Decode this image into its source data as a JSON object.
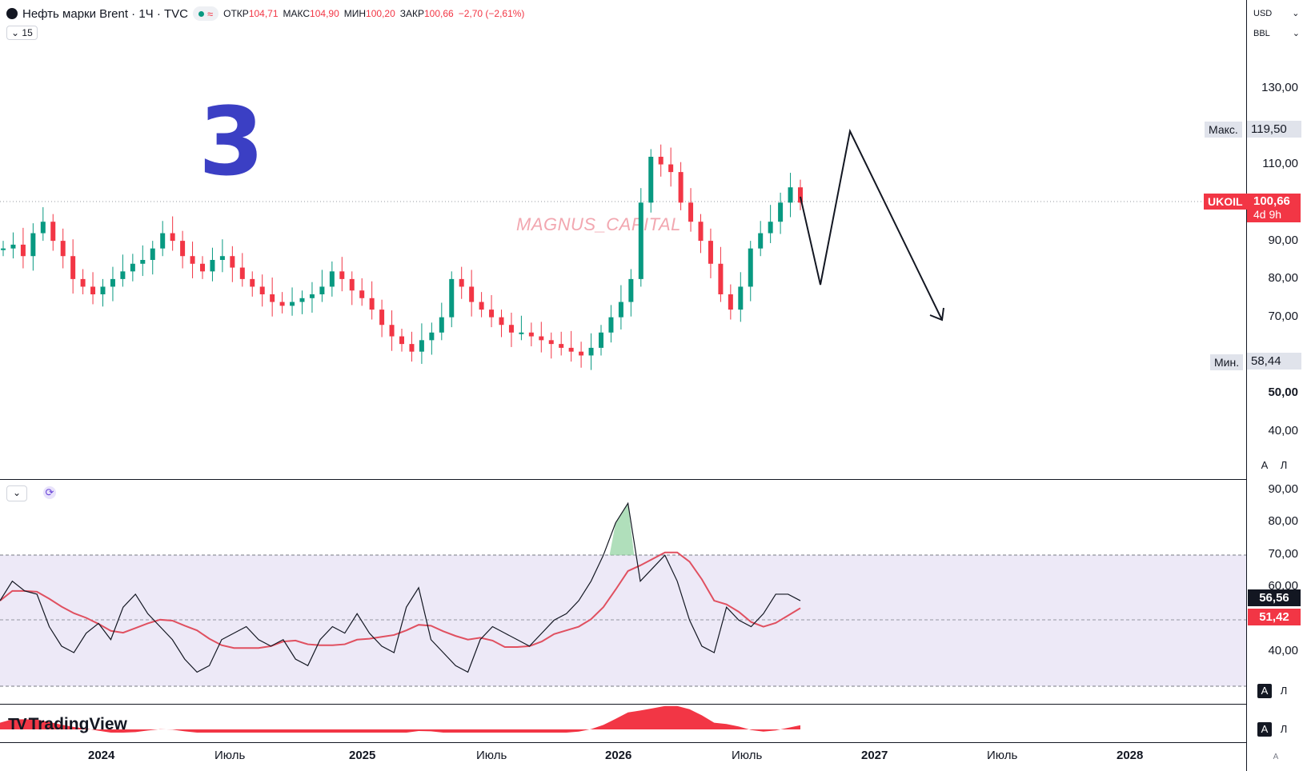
{
  "header": {
    "title": "Нефть марки Brent · 1Ч · TVC",
    "interval_chip": "15",
    "ohlc": [
      {
        "k": "ОТКР",
        "v": "104,71"
      },
      {
        "k": "МАКС",
        "v": "104,90"
      },
      {
        "k": "МИН",
        "v": "100,20"
      },
      {
        "k": "ЗАКР",
        "v": "100,66"
      }
    ],
    "change": "−2,70 (−2,61%)"
  },
  "axis": {
    "currency": "USD",
    "unit": "BBL",
    "price_ticks": [
      "130,00",
      "110,00",
      "90,00",
      "80,00",
      "70,00",
      "50,00",
      "40,00"
    ],
    "max_label": "Макс.",
    "max_value": "119,50",
    "min_label": "Мин.",
    "min_value": "58,44",
    "symbol": "UKOIL",
    "last_price": "100,66",
    "countdown": "4d 9h",
    "rsi_ticks": [
      "90,00",
      "80,00",
      "70,00",
      "60,00",
      "40,00"
    ],
    "rsi_value": "56,56",
    "rsi_ma_value": "51,42",
    "auto_label": "A",
    "log_label": "Л"
  },
  "time_axis": [
    "2024",
    "Июль",
    "2025",
    "Июль",
    "2026",
    "Июль",
    "2027",
    "Июль",
    "2028"
  ],
  "annotations": {
    "big_number": "3",
    "watermark": "MAGNUS_CAPITAL",
    "brand": "TradingView"
  },
  "colors": {
    "up": "#089981",
    "down": "#f23645",
    "number": "#3b3fc4",
    "rsi_band": "#ede9f7",
    "rsi_ma": "#e05060"
  },
  "chart_data": [
    {
      "type": "candlestick",
      "ylim": [
        30,
        140
      ],
      "series": [
        {
          "name": "UKOIL",
          "values": [
            88,
            89,
            86,
            92,
            95,
            90,
            86,
            80,
            78,
            76,
            78,
            80,
            82,
            84,
            85,
            88,
            92,
            90,
            86,
            84,
            82,
            85,
            86,
            83,
            80,
            78,
            76,
            74,
            73,
            74,
            75,
            76,
            78,
            82,
            80,
            77,
            75,
            72,
            68,
            65,
            63,
            61,
            64,
            66,
            70,
            80,
            78,
            74,
            72,
            70,
            68,
            66,
            66,
            65,
            64,
            63,
            62,
            61,
            60,
            62,
            66,
            70,
            74,
            80,
            100,
            112,
            110,
            108,
            100,
            95,
            90,
            84,
            76,
            72,
            78,
            88,
            92,
            95,
            100,
            104,
            100
          ]
        }
      ]
    },
    {
      "type": "line",
      "ylim": [
        30,
        90
      ],
      "series": [
        {
          "name": "RSI",
          "values": [
            56,
            62,
            59,
            58,
            48,
            42,
            40,
            46,
            49,
            44,
            54,
            58,
            52,
            48,
            44,
            38,
            34,
            36,
            44,
            46,
            48,
            44,
            42,
            44,
            38,
            36,
            44,
            48,
            46,
            52,
            46,
            42,
            40,
            54,
            60,
            44,
            40,
            36,
            34,
            44,
            48,
            46,
            44,
            42,
            46,
            50,
            52,
            56,
            62,
            70,
            80,
            86,
            62,
            66,
            70,
            62,
            50,
            42,
            40,
            54,
            50,
            48,
            52,
            58,
            58,
            56
          ]
        }
      ]
    }
  ]
}
